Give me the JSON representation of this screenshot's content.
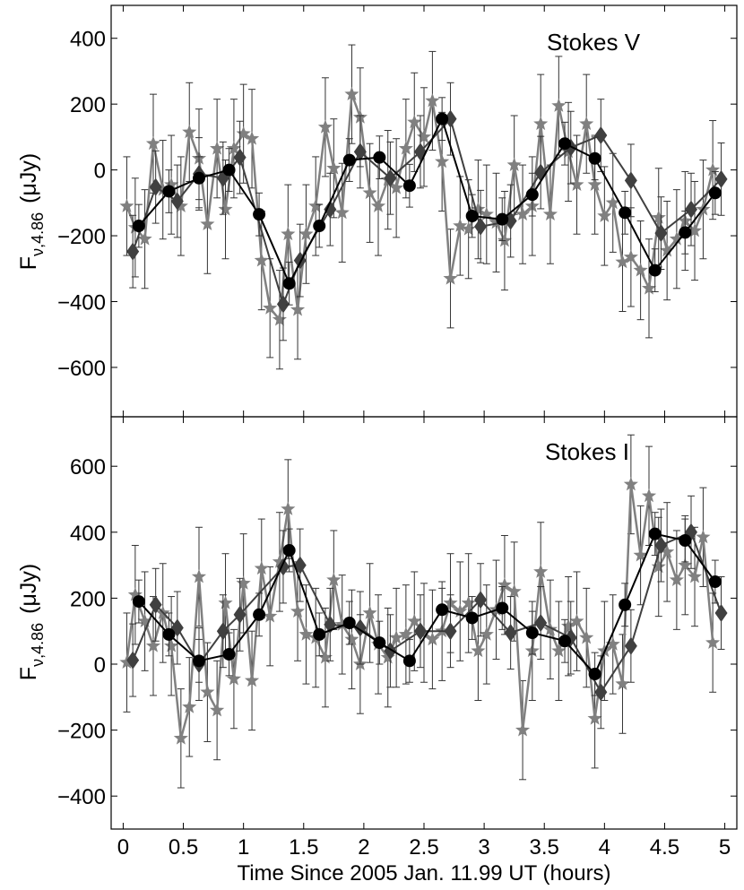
{
  "figure": {
    "xlabel": "Time Since 2005 Jan. 11.99 UT  (hours)",
    "xlim": [
      -0.1,
      5.1
    ],
    "xticks": [
      0,
      0.5,
      1,
      1.5,
      2,
      2.5,
      3,
      3.5,
      4,
      4.5,
      5
    ],
    "xtick_labels": [
      "0",
      "0.5",
      "1",
      "1.5",
      "2",
      "2.5",
      "3",
      "3.5",
      "4",
      "4.5",
      "5"
    ],
    "colors": {
      "circle_series": "#000000",
      "diamond_series": "#404040",
      "star_series": "#808080",
      "errorbar": "#333333"
    }
  },
  "chart_data": [
    {
      "type": "line",
      "title": "Stokes V",
      "ylabel_main": "F",
      "ylabel_sub": "ν,4.86",
      "ylabel_unit": "(μJy)",
      "ylim": [
        -750,
        500
      ],
      "yticks": [
        -600,
        -400,
        -200,
        0,
        200,
        400
      ],
      "ytick_labels": [
        "−600",
        "−400",
        "−200",
        "0",
        "200",
        "400"
      ],
      "series": [
        {
          "marker": "circle",
          "x": [
            0.13,
            0.38,
            0.63,
            0.88,
            1.13,
            1.38,
            1.63,
            1.88,
            2.13,
            2.38,
            2.65,
            2.9,
            3.15,
            3.4,
            3.67,
            3.92,
            4.17,
            4.42,
            4.67,
            4.92
          ],
          "y": [
            -170,
            -65,
            -25,
            0,
            -135,
            -345,
            -170,
            30,
            38,
            -48,
            155,
            -140,
            -150,
            -75,
            80,
            35,
            -130,
            -305,
            -190,
            -70
          ],
          "err": [
            65,
            65,
            65,
            65,
            65,
            65,
            65,
            65,
            65,
            65,
            65,
            65,
            65,
            65,
            65,
            65,
            65,
            65,
            65,
            65
          ]
        },
        {
          "marker": "diamond",
          "x": [
            0.08,
            0.27,
            0.45,
            0.63,
            0.83,
            0.97,
            1.33,
            1.47,
            1.72,
            1.97,
            2.22,
            2.47,
            2.72,
            2.97,
            3.22,
            3.47,
            3.72,
            3.97,
            4.22,
            4.47,
            4.72,
            4.97
          ],
          "y": [
            -248,
            -52,
            -95,
            -12,
            -25,
            38,
            -408,
            -275,
            -120,
            55,
            -25,
            55,
            155,
            -172,
            -155,
            -8,
            68,
            105,
            -32,
            -192,
            -120,
            -28
          ],
          "err": [
            110,
            110,
            110,
            110,
            110,
            110,
            110,
            110,
            110,
            110,
            110,
            110,
            110,
            110,
            110,
            110,
            110,
            110,
            110,
            110,
            110,
            110
          ]
        },
        {
          "marker": "star",
          "x": [
            0.03,
            0.1,
            0.18,
            0.25,
            0.33,
            0.4,
            0.48,
            0.55,
            0.63,
            0.7,
            0.78,
            0.85,
            0.92,
            1.0,
            1.07,
            1.15,
            1.22,
            1.3,
            1.37,
            1.45,
            1.52,
            1.6,
            1.68,
            1.75,
            1.82,
            1.9,
            1.97,
            2.05,
            2.12,
            2.2,
            2.27,
            2.35,
            2.42,
            2.5,
            2.57,
            2.65,
            2.72,
            2.8,
            2.87,
            2.95,
            3.02,
            3.1,
            3.17,
            3.25,
            3.32,
            3.4,
            3.47,
            3.55,
            3.62,
            3.7,
            3.77,
            3.85,
            3.92,
            4.0,
            4.07,
            4.15,
            4.22,
            4.3,
            4.37,
            4.45,
            4.52,
            4.6,
            4.67,
            4.75,
            4.82,
            4.9
          ],
          "y": [
            -110,
            -175,
            -210,
            80,
            -60,
            -45,
            -110,
            115,
            35,
            -165,
            65,
            -120,
            65,
            110,
            95,
            -275,
            -420,
            -455,
            -195,
            -425,
            -195,
            -110,
            130,
            5,
            -130,
            230,
            160,
            -70,
            -110,
            -30,
            -55,
            65,
            145,
            100,
            210,
            25,
            -330,
            -170,
            -180,
            -120,
            -135,
            -160,
            -215,
            15,
            -135,
            -110,
            140,
            -135,
            195,
            55,
            -45,
            140,
            -45,
            -140,
            -100,
            -280,
            -265,
            -305,
            -360,
            -145,
            -245,
            -210,
            -155,
            -185,
            -120,
            0
          ],
          "err": [
            150,
            150,
            150,
            150,
            150,
            150,
            150,
            150,
            150,
            150,
            150,
            150,
            150,
            150,
            150,
            150,
            150,
            150,
            150,
            150,
            150,
            150,
            150,
            150,
            150,
            150,
            150,
            150,
            150,
            150,
            150,
            150,
            150,
            150,
            150,
            150,
            150,
            150,
            150,
            150,
            150,
            150,
            150,
            150,
            150,
            150,
            150,
            150,
            150,
            150,
            150,
            150,
            150,
            150,
            150,
            150,
            150,
            150,
            150,
            150,
            150,
            150,
            150,
            150,
            150,
            150
          ]
        }
      ]
    },
    {
      "type": "line",
      "title": "Stokes I",
      "ylabel_main": "F",
      "ylabel_sub": "ν,4.86",
      "ylabel_unit": "(μJy)",
      "ylim": [
        -500,
        750
      ],
      "yticks": [
        -400,
        -200,
        0,
        200,
        400,
        600
      ],
      "ytick_labels": [
        "−400",
        "−200",
        "0",
        "200",
        "400",
        "600"
      ],
      "series": [
        {
          "marker": "circle",
          "x": [
            0.13,
            0.38,
            0.63,
            0.88,
            1.13,
            1.38,
            1.63,
            1.88,
            2.13,
            2.38,
            2.65,
            2.9,
            3.15,
            3.4,
            3.67,
            3.92,
            4.17,
            4.42,
            4.67,
            4.92
          ],
          "y": [
            190,
            90,
            10,
            30,
            150,
            345,
            90,
            125,
            65,
            10,
            165,
            140,
            170,
            95,
            70,
            -30,
            180,
            395,
            375,
            250
          ],
          "err": [
            65,
            65,
            65,
            65,
            65,
            65,
            65,
            65,
            65,
            65,
            65,
            65,
            65,
            65,
            65,
            65,
            65,
            65,
            65,
            65
          ]
        },
        {
          "marker": "diamond",
          "x": [
            0.08,
            0.27,
            0.45,
            0.63,
            0.83,
            0.97,
            1.33,
            1.47,
            1.72,
            1.97,
            2.22,
            2.47,
            2.72,
            2.97,
            3.22,
            3.47,
            3.72,
            3.97,
            4.22,
            4.47,
            4.72,
            4.97
          ],
          "y": [
            12,
            180,
            110,
            0,
            100,
            150,
            295,
            300,
            120,
            110,
            40,
            100,
            100,
            195,
            95,
            125,
            80,
            -85,
            55,
            360,
            400,
            155
          ],
          "err": [
            110,
            110,
            110,
            110,
            110,
            110,
            110,
            110,
            110,
            110,
            110,
            110,
            110,
            110,
            110,
            110,
            110,
            110,
            110,
            110,
            110,
            110
          ]
        },
        {
          "marker": "star",
          "x": [
            0.03,
            0.1,
            0.18,
            0.25,
            0.33,
            0.4,
            0.48,
            0.55,
            0.63,
            0.7,
            0.78,
            0.85,
            0.92,
            1.0,
            1.07,
            1.15,
            1.22,
            1.3,
            1.37,
            1.45,
            1.52,
            1.6,
            1.68,
            1.75,
            1.82,
            1.9,
            1.97,
            2.05,
            2.12,
            2.2,
            2.27,
            2.35,
            2.42,
            2.5,
            2.57,
            2.65,
            2.72,
            2.8,
            2.87,
            2.95,
            3.02,
            3.1,
            3.17,
            3.25,
            3.32,
            3.4,
            3.47,
            3.55,
            3.62,
            3.7,
            3.77,
            3.85,
            3.92,
            4.0,
            4.07,
            4.15,
            4.22,
            4.3,
            4.37,
            4.45,
            4.52,
            4.6,
            4.67,
            4.75,
            4.82,
            4.9
          ],
          "y": [
            5,
            210,
            130,
            55,
            155,
            55,
            -225,
            -130,
            265,
            -85,
            -140,
            185,
            -45,
            245,
            -50,
            290,
            145,
            310,
            470,
            160,
            90,
            80,
            20,
            255,
            120,
            75,
            0,
            155,
            60,
            20,
            80,
            90,
            130,
            95,
            75,
            100,
            185,
            160,
            185,
            40,
            90,
            165,
            240,
            220,
            -200,
            40,
            280,
            105,
            40,
            115,
            130,
            80,
            -165,
            40,
            60,
            -60,
            545,
            330,
            510,
            295,
            340,
            255,
            300,
            265,
            385,
            65
          ],
          "err": [
            150,
            150,
            150,
            150,
            150,
            150,
            150,
            150,
            150,
            150,
            150,
            150,
            150,
            150,
            150,
            150,
            150,
            150,
            150,
            150,
            150,
            150,
            150,
            150,
            150,
            150,
            150,
            150,
            150,
            150,
            150,
            150,
            150,
            150,
            150,
            150,
            150,
            150,
            150,
            150,
            150,
            150,
            150,
            150,
            150,
            150,
            150,
            150,
            150,
            150,
            150,
            150,
            150,
            150,
            150,
            150,
            150,
            150,
            150,
            150,
            150,
            150,
            150,
            150,
            150,
            150
          ]
        }
      ]
    }
  ]
}
